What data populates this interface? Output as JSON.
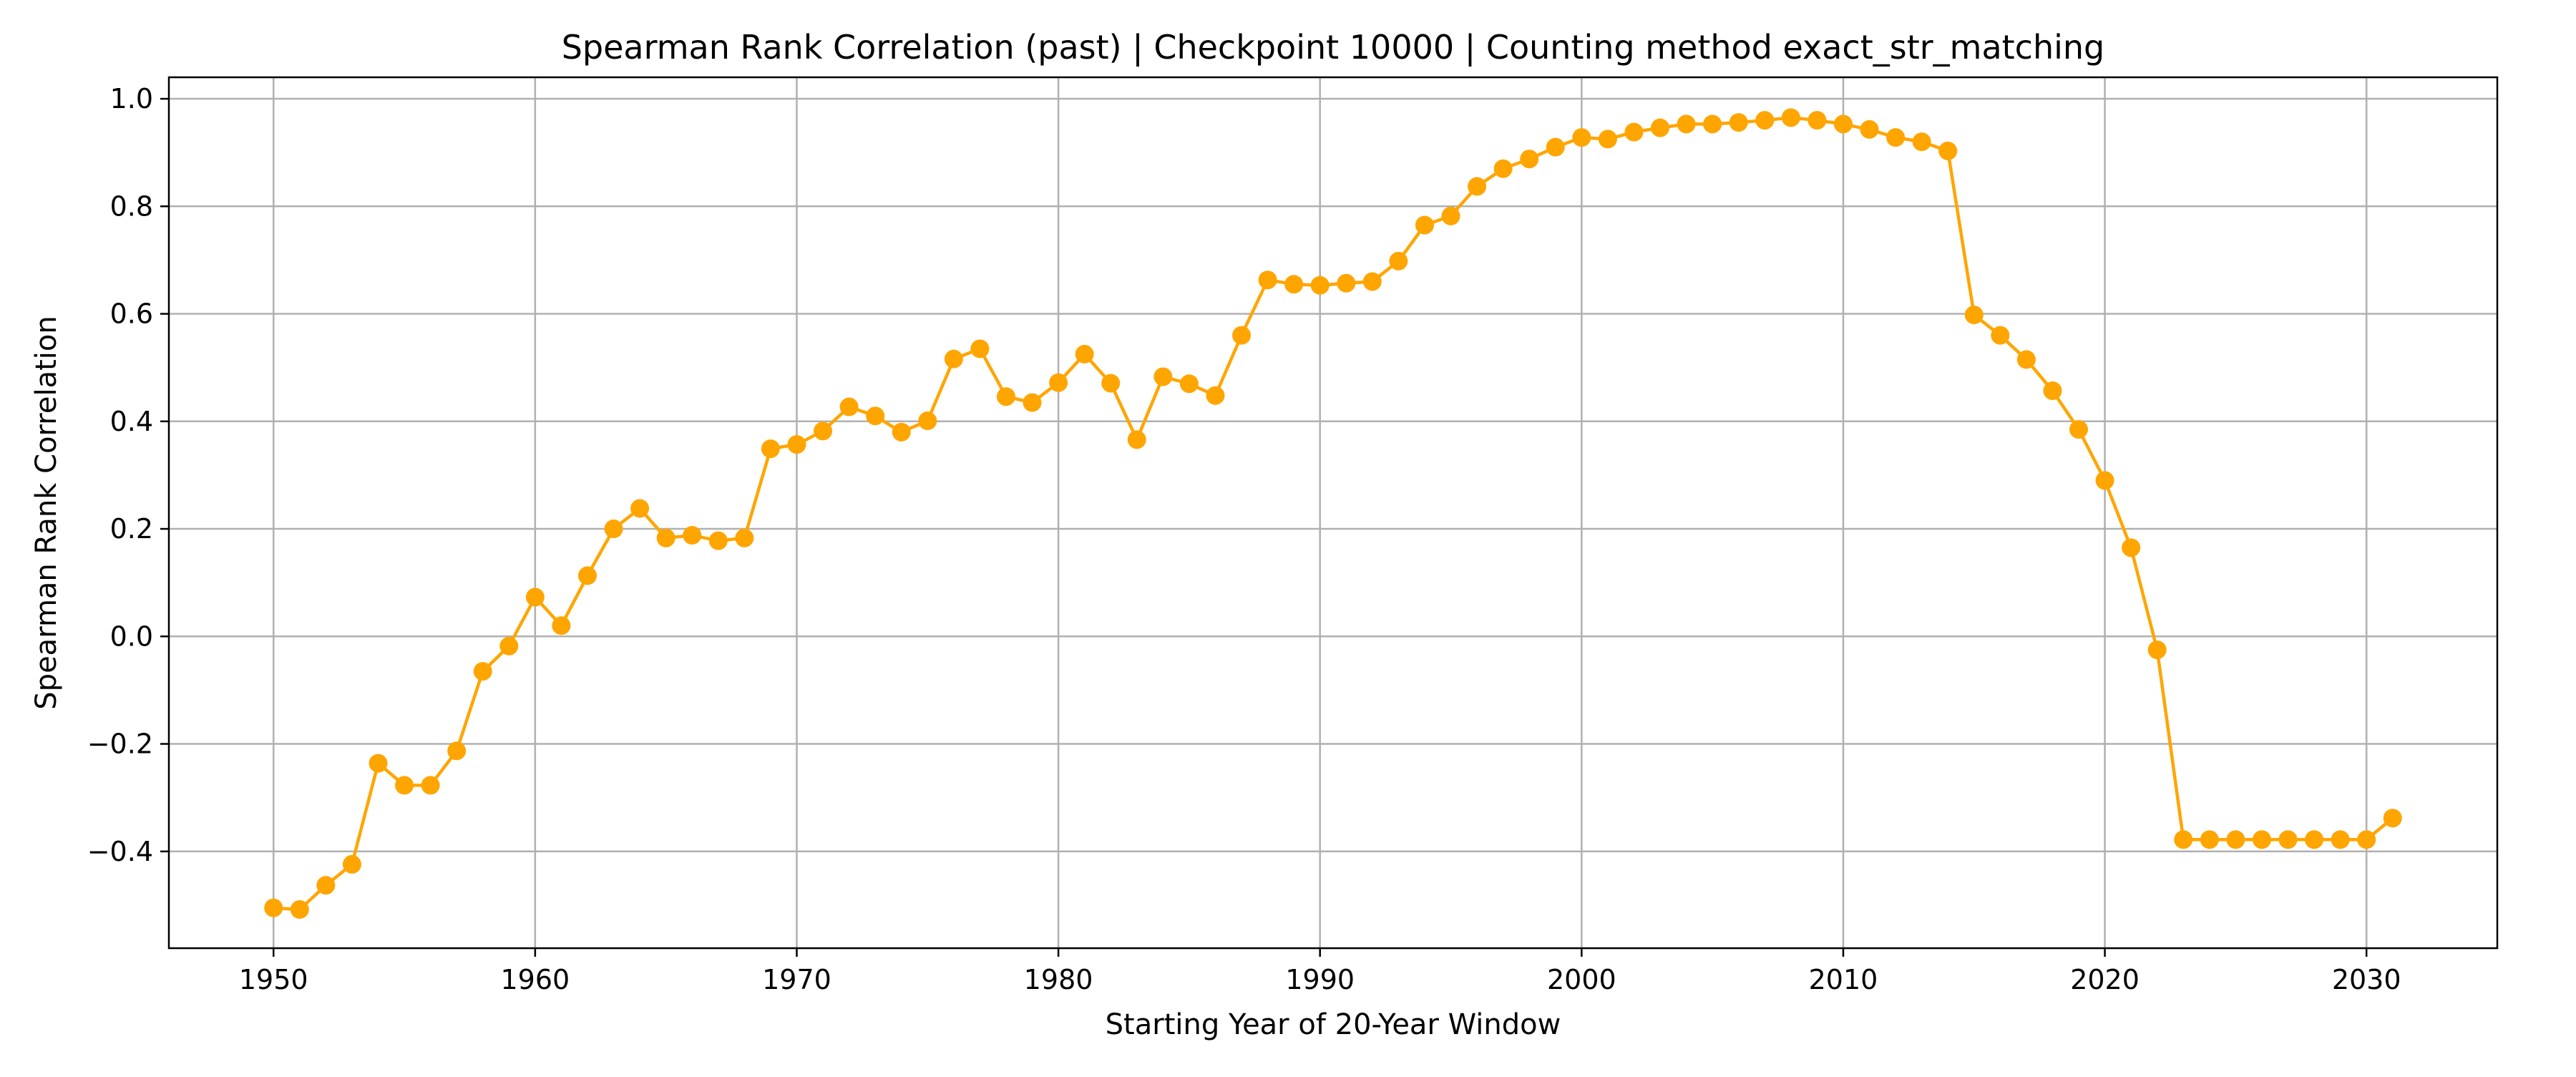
{
  "chart_data": {
    "type": "line",
    "title": "Spearman Rank Correlation (past) | Checkpoint 10000 | Counting method exact_str_matching",
    "xlabel": "Starting Year of 20-Year Window",
    "ylabel": "Spearman Rank Correlation",
    "xlim": [
      1946,
      2035
    ],
    "ylim": [
      -0.58,
      1.04
    ],
    "x_ticks": [
      1950,
      1960,
      1970,
      1980,
      1990,
      2000,
      2010,
      2020,
      2030
    ],
    "y_ticks": [
      -0.4,
      -0.2,
      0.0,
      0.2,
      0.4,
      0.6,
      0.8,
      1.0
    ],
    "y_tick_labels": [
      "−0.4",
      "−0.2",
      "0.0",
      "0.2",
      "0.4",
      "0.6",
      "0.8",
      "1.0"
    ],
    "grid": true,
    "legend": "none",
    "color": "#FFA500",
    "series": [
      {
        "x": [
          1950,
          1951,
          1952,
          1953,
          1954,
          1955,
          1956,
          1957,
          1958,
          1959,
          1960,
          1961,
          1962,
          1963,
          1964,
          1965,
          1966,
          1967,
          1968,
          1969,
          1970,
          1971,
          1972,
          1973,
          1974,
          1975,
          1976,
          1977,
          1978,
          1979,
          1980,
          1981,
          1982,
          1983,
          1984,
          1985,
          1986,
          1987,
          1988,
          1989,
          1990,
          1991,
          1992,
          1993,
          1994,
          1995,
          1996,
          1997,
          1998,
          1999,
          2000,
          2001,
          2002,
          2003,
          2004,
          2005,
          2006,
          2007,
          2008,
          2009,
          2010,
          2011,
          2012,
          2013,
          2014,
          2015,
          2016,
          2017,
          2018,
          2019,
          2020,
          2021,
          2022,
          2023,
          2024,
          2025,
          2026,
          2027,
          2028,
          2029,
          2030,
          2031
        ],
        "values": [
          -0.505,
          -0.508,
          -0.463,
          -0.424,
          -0.236,
          -0.277,
          -0.277,
          -0.213,
          -0.065,
          -0.018,
          0.073,
          0.02,
          0.113,
          0.2,
          0.238,
          0.183,
          0.188,
          0.178,
          0.183,
          0.349,
          0.357,
          0.382,
          0.427,
          0.41,
          0.38,
          0.401,
          0.516,
          0.535,
          0.446,
          0.435,
          0.472,
          0.525,
          0.471,
          0.366,
          0.483,
          0.47,
          0.448,
          0.56,
          0.663,
          0.655,
          0.653,
          0.657,
          0.66,
          0.698,
          0.765,
          0.782,
          0.837,
          0.87,
          0.888,
          0.91,
          0.928,
          0.925,
          0.938,
          0.946,
          0.953,
          0.953,
          0.956,
          0.96,
          0.965,
          0.96,
          0.953,
          0.943,
          0.928,
          0.92,
          0.903,
          0.598,
          0.56,
          0.515,
          0.457,
          0.385,
          0.29,
          0.165,
          -0.025,
          -0.378,
          -0.378,
          -0.378,
          -0.378,
          -0.378,
          -0.378,
          -0.378,
          -0.378,
          -0.338
        ]
      }
    ]
  }
}
